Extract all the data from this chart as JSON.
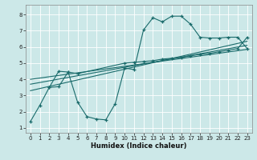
{
  "xlabel": "Humidex (Indice chaleur)",
  "bg_color": "#cce8e8",
  "line_color": "#1a6b6b",
  "xlim": [
    -0.5,
    23.5
  ],
  "ylim": [
    0.7,
    8.6
  ],
  "xticks": [
    0,
    1,
    2,
    3,
    4,
    5,
    6,
    7,
    8,
    9,
    10,
    11,
    12,
    13,
    14,
    15,
    16,
    17,
    18,
    19,
    20,
    21,
    22,
    23
  ],
  "yticks": [
    1,
    2,
    3,
    4,
    5,
    6,
    7,
    8
  ],
  "curve1_x": [
    0,
    1,
    2,
    3,
    4,
    5,
    6,
    7,
    8,
    9,
    10,
    11,
    12,
    13,
    14,
    15,
    16,
    17,
    18,
    19,
    20,
    21,
    22,
    23
  ],
  "curve1_y": [
    1.4,
    2.4,
    3.5,
    4.5,
    4.45,
    2.6,
    1.7,
    1.55,
    1.5,
    2.5,
    4.7,
    4.6,
    7.05,
    7.8,
    7.55,
    7.9,
    7.9,
    7.4,
    6.6,
    6.55,
    6.55,
    6.6,
    6.6,
    5.9
  ],
  "curve2_x": [
    2,
    3,
    4,
    5,
    10,
    11,
    12,
    13,
    14,
    15,
    16,
    17,
    18,
    19,
    20,
    21,
    22,
    23
  ],
  "curve2_y": [
    3.5,
    3.55,
    4.45,
    4.35,
    5.0,
    5.05,
    5.1,
    5.15,
    5.25,
    5.3,
    5.35,
    5.45,
    5.55,
    5.6,
    5.7,
    5.8,
    5.9,
    6.6
  ],
  "trend1_x": [
    0,
    23
  ],
  "trend1_y": [
    3.3,
    6.35
  ],
  "trend2_x": [
    0,
    23
  ],
  "trend2_y": [
    3.7,
    6.1
  ],
  "trend3_x": [
    0,
    23
  ],
  "trend3_y": [
    4.0,
    5.85
  ]
}
